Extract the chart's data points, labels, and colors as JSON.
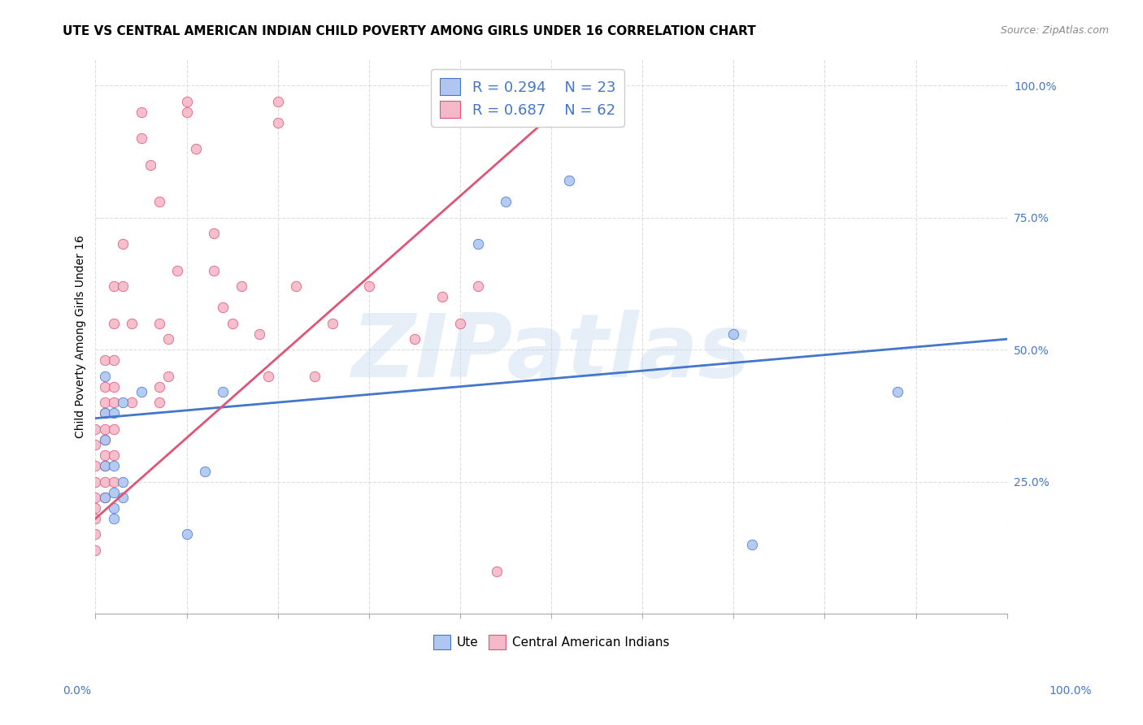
{
  "title": "UTE VS CENTRAL AMERICAN INDIAN CHILD POVERTY AMONG GIRLS UNDER 16 CORRELATION CHART",
  "source": "Source: ZipAtlas.com",
  "ylabel": "Child Poverty Among Girls Under 16",
  "legend_ute_r": "R = 0.294",
  "legend_ute_n": "N = 23",
  "legend_ca_r": "R = 0.687",
  "legend_ca_n": "N = 62",
  "watermark": "ZIPatlas",
  "ute_color": "#aec6f0",
  "ca_color": "#f4b8c8",
  "ute_line_color": "#4477cc",
  "ca_line_color": "#e05575",
  "ute_scatter": [
    [
      0.01,
      0.45
    ],
    [
      0.01,
      0.38
    ],
    [
      0.01,
      0.33
    ],
    [
      0.01,
      0.28
    ],
    [
      0.01,
      0.22
    ],
    [
      0.02,
      0.38
    ],
    [
      0.02,
      0.28
    ],
    [
      0.02,
      0.23
    ],
    [
      0.02,
      0.2
    ],
    [
      0.02,
      0.18
    ],
    [
      0.03,
      0.4
    ],
    [
      0.03,
      0.25
    ],
    [
      0.03,
      0.22
    ],
    [
      0.05,
      0.42
    ],
    [
      0.1,
      0.15
    ],
    [
      0.12,
      0.27
    ],
    [
      0.14,
      0.42
    ],
    [
      0.42,
      0.7
    ],
    [
      0.45,
      0.78
    ],
    [
      0.52,
      0.82
    ],
    [
      0.7,
      0.53
    ],
    [
      0.88,
      0.42
    ],
    [
      0.72,
      0.13
    ]
  ],
  "ca_scatter": [
    [
      0.0,
      0.35
    ],
    [
      0.0,
      0.32
    ],
    [
      0.0,
      0.28
    ],
    [
      0.0,
      0.25
    ],
    [
      0.0,
      0.22
    ],
    [
      0.0,
      0.2
    ],
    [
      0.0,
      0.18
    ],
    [
      0.0,
      0.15
    ],
    [
      0.0,
      0.12
    ],
    [
      0.01,
      0.48
    ],
    [
      0.01,
      0.43
    ],
    [
      0.01,
      0.4
    ],
    [
      0.01,
      0.38
    ],
    [
      0.01,
      0.35
    ],
    [
      0.01,
      0.33
    ],
    [
      0.01,
      0.3
    ],
    [
      0.01,
      0.28
    ],
    [
      0.01,
      0.25
    ],
    [
      0.01,
      0.22
    ],
    [
      0.02,
      0.62
    ],
    [
      0.02,
      0.55
    ],
    [
      0.02,
      0.48
    ],
    [
      0.02,
      0.43
    ],
    [
      0.02,
      0.4
    ],
    [
      0.02,
      0.35
    ],
    [
      0.02,
      0.3
    ],
    [
      0.02,
      0.25
    ],
    [
      0.03,
      0.7
    ],
    [
      0.03,
      0.62
    ],
    [
      0.04,
      0.55
    ],
    [
      0.04,
      0.4
    ],
    [
      0.05,
      0.95
    ],
    [
      0.05,
      0.9
    ],
    [
      0.06,
      0.85
    ],
    [
      0.07,
      0.78
    ],
    [
      0.07,
      0.55
    ],
    [
      0.07,
      0.43
    ],
    [
      0.07,
      0.4
    ],
    [
      0.08,
      0.52
    ],
    [
      0.08,
      0.45
    ],
    [
      0.09,
      0.65
    ],
    [
      0.1,
      0.97
    ],
    [
      0.1,
      0.95
    ],
    [
      0.11,
      0.88
    ],
    [
      0.13,
      0.72
    ],
    [
      0.13,
      0.65
    ],
    [
      0.14,
      0.58
    ],
    [
      0.15,
      0.55
    ],
    [
      0.16,
      0.62
    ],
    [
      0.18,
      0.53
    ],
    [
      0.19,
      0.45
    ],
    [
      0.2,
      0.97
    ],
    [
      0.2,
      0.93
    ],
    [
      0.22,
      0.62
    ],
    [
      0.24,
      0.45
    ],
    [
      0.26,
      0.55
    ],
    [
      0.3,
      0.62
    ],
    [
      0.35,
      0.52
    ],
    [
      0.38,
      0.6
    ],
    [
      0.4,
      0.55
    ],
    [
      0.42,
      0.62
    ],
    [
      0.44,
      0.08
    ]
  ],
  "xlim": [
    0,
    1
  ],
  "ylim": [
    0,
    1.05
  ],
  "ute_line_x": [
    0,
    1
  ],
  "ute_line_y": [
    0.37,
    0.52
  ],
  "ca_line_x": [
    0.0,
    0.55
  ],
  "ca_line_y": [
    0.18,
    1.02
  ],
  "background_color": "#ffffff",
  "grid_color": "#dddddd",
  "title_fontsize": 11,
  "source_fontsize": 9,
  "legend_fontsize": 13,
  "axis_label_fontsize": 10,
  "scatter_size": 80
}
